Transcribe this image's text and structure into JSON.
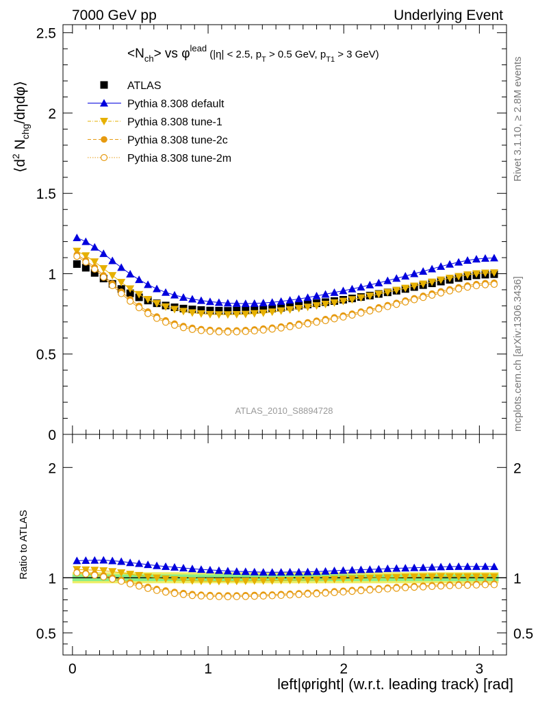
{
  "header": {
    "left": "7000 GeV pp",
    "right": "Underlying Event"
  },
  "side_labels": {
    "rivet": "Rivet 3.1.10, ≥ 2.8M events",
    "mcplots": "mcplots.cern.ch [arXiv:1306.3436]"
  },
  "chart_data": {
    "type": "scatter",
    "title": "<Nch> vs φlead (|η| < 2.5, pT > 0.5 GeV, pT1 > 3 GeV)",
    "analysis": "ATLAS_2010_S8894728",
    "xlabel": "left|φright| (w.r.t. leading track) [rad]",
    "ylabel": "⟨d² Nchg/dηdφ⟩",
    "ratio_ylabel": "Ratio to ATLAS",
    "xlim": [
      -0.07,
      3.2
    ],
    "ylim": [
      0,
      2.55
    ],
    "ratio_ylim": [
      0.3,
      2.3
    ],
    "x_ticks": [
      "0",
      "1",
      "2",
      "3"
    ],
    "y_ticks": [
      "0",
      "0.5",
      "1",
      "1.5",
      "2",
      "2.5"
    ],
    "ratio_ticks": [
      "0.5",
      "1",
      "2"
    ],
    "grid": false,
    "legend_position": "top-left",
    "colors": {
      "atlas": "#000000",
      "default": "#0000dd",
      "tune1": "#e6b000",
      "tune2c": "#e69a10",
      "tune2m": "#e69a10",
      "band_inner": "#88ee88",
      "band_outer": "#eeee66"
    },
    "x": [
      0.0327,
      0.0982,
      0.1636,
      0.2291,
      0.2945,
      0.36,
      0.4254,
      0.4909,
      0.5563,
      0.6218,
      0.6872,
      0.7527,
      0.8181,
      0.8836,
      0.949,
      1.0145,
      1.0799,
      1.1454,
      1.2108,
      1.2763,
      1.3417,
      1.4072,
      1.4726,
      1.5381,
      1.6035,
      1.669,
      1.7344,
      1.7999,
      1.8653,
      1.9308,
      1.9962,
      2.0617,
      2.1271,
      2.1926,
      2.258,
      2.3235,
      2.3889,
      2.4544,
      2.5198,
      2.5853,
      2.6507,
      2.7162,
      2.7816,
      2.8471,
      2.9125,
      2.978,
      3.0434,
      3.1089
    ],
    "series": [
      {
        "name": "ATLAS",
        "marker": "square",
        "values": [
          1.06,
          1.037,
          1.005,
          0.97,
          0.937,
          0.905,
          0.878,
          0.853,
          0.833,
          0.816,
          0.802,
          0.791,
          0.783,
          0.778,
          0.774,
          0.771,
          0.77,
          0.769,
          0.77,
          0.771,
          0.774,
          0.778,
          0.783,
          0.788,
          0.794,
          0.801,
          0.808,
          0.816,
          0.823,
          0.83,
          0.838,
          0.846,
          0.855,
          0.864,
          0.874,
          0.884,
          0.894,
          0.905,
          0.917,
          0.929,
          0.94,
          0.951,
          0.962,
          0.973,
          0.983,
          0.99,
          0.994,
          0.997
        ]
      },
      {
        "name": "Pythia 8.308 default",
        "marker": "triangle-up",
        "values": [
          1.224,
          1.2,
          1.165,
          1.125,
          1.081,
          1.039,
          0.998,
          0.963,
          0.932,
          0.906,
          0.884,
          0.867,
          0.853,
          0.842,
          0.833,
          0.826,
          0.821,
          0.817,
          0.815,
          0.814,
          0.815,
          0.818,
          0.822,
          0.828,
          0.835,
          0.843,
          0.852,
          0.862,
          0.872,
          0.883,
          0.894,
          0.905,
          0.917,
          0.93,
          0.943,
          0.957,
          0.971,
          0.985,
          1.0,
          1.015,
          1.03,
          1.045,
          1.059,
          1.072,
          1.083,
          1.091,
          1.096,
          1.098
        ]
      },
      {
        "name": "Pythia 8.308 tune-1",
        "marker": "triangle-down",
        "values": [
          1.14,
          1.112,
          1.074,
          1.032,
          0.989,
          0.946,
          0.906,
          0.871,
          0.84,
          0.815,
          0.794,
          0.778,
          0.766,
          0.757,
          0.751,
          0.747,
          0.745,
          0.745,
          0.746,
          0.748,
          0.752,
          0.756,
          0.762,
          0.769,
          0.776,
          0.784,
          0.792,
          0.801,
          0.81,
          0.819,
          0.829,
          0.839,
          0.85,
          0.861,
          0.873,
          0.885,
          0.897,
          0.91,
          0.923,
          0.936,
          0.948,
          0.961,
          0.972,
          0.983,
          0.993,
          1.0,
          1.004,
          1.006
        ]
      },
      {
        "name": "Pythia 8.308 tune-2c",
        "marker": "circle-filled",
        "values": [
          1.118,
          1.083,
          1.04,
          0.99,
          0.938,
          0.888,
          0.841,
          0.8,
          0.764,
          0.733,
          0.709,
          0.689,
          0.674,
          0.663,
          0.655,
          0.65,
          0.647,
          0.646,
          0.647,
          0.649,
          0.653,
          0.658,
          0.664,
          0.671,
          0.679,
          0.688,
          0.697,
          0.707,
          0.717,
          0.728,
          0.739,
          0.751,
          0.764,
          0.777,
          0.79,
          0.804,
          0.818,
          0.833,
          0.847,
          0.862,
          0.876,
          0.89,
          0.903,
          0.915,
          0.926,
          0.935,
          0.941,
          0.944
        ]
      },
      {
        "name": "Pythia 8.308 tune-2m",
        "marker": "circle-open",
        "values": [
          1.108,
          1.072,
          1.028,
          0.978,
          0.926,
          0.876,
          0.829,
          0.788,
          0.752,
          0.722,
          0.698,
          0.679,
          0.664,
          0.653,
          0.646,
          0.641,
          0.638,
          0.637,
          0.638,
          0.64,
          0.644,
          0.649,
          0.655,
          0.662,
          0.67,
          0.679,
          0.688,
          0.698,
          0.708,
          0.719,
          0.73,
          0.742,
          0.755,
          0.768,
          0.781,
          0.795,
          0.809,
          0.824,
          0.838,
          0.852,
          0.866,
          0.88,
          0.893,
          0.905,
          0.916,
          0.925,
          0.931,
          0.934
        ]
      }
    ],
    "ratio_series": [
      {
        "name": "Pythia 8.308 default",
        "values": [
          1.155,
          1.157,
          1.159,
          1.16,
          1.154,
          1.148,
          1.137,
          1.129,
          1.119,
          1.11,
          1.102,
          1.096,
          1.089,
          1.082,
          1.076,
          1.071,
          1.066,
          1.062,
          1.058,
          1.056,
          1.053,
          1.051,
          1.05,
          1.051,
          1.052,
          1.052,
          1.054,
          1.056,
          1.059,
          1.064,
          1.067,
          1.07,
          1.073,
          1.076,
          1.079,
          1.083,
          1.086,
          1.088,
          1.091,
          1.093,
          1.096,
          1.099,
          1.101,
          1.102,
          1.102,
          1.102,
          1.103,
          1.101
        ]
      },
      {
        "name": "Pythia 8.308 tune-1",
        "values": [
          1.075,
          1.072,
          1.069,
          1.064,
          1.056,
          1.045,
          1.032,
          1.021,
          1.008,
          0.999,
          0.99,
          0.984,
          0.978,
          0.973,
          0.97,
          0.969,
          0.968,
          0.969,
          0.969,
          0.97,
          0.972,
          0.972,
          0.973,
          0.976,
          0.977,
          0.979,
          0.98,
          0.982,
          0.984,
          0.987,
          0.989,
          0.992,
          0.994,
          0.997,
          0.999,
          1.001,
          1.003,
          1.006,
          1.007,
          1.008,
          1.009,
          1.011,
          1.01,
          1.01,
          1.01,
          1.01,
          1.01,
          1.009
        ]
      },
      {
        "name": "Pythia 8.308 tune-2c",
        "values": [
          1.055,
          1.044,
          1.035,
          1.021,
          1.001,
          0.981,
          0.958,
          0.938,
          0.917,
          0.898,
          0.884,
          0.871,
          0.861,
          0.852,
          0.846,
          0.843,
          0.84,
          0.84,
          0.84,
          0.842,
          0.844,
          0.846,
          0.848,
          0.852,
          0.855,
          0.859,
          0.863,
          0.866,
          0.871,
          0.877,
          0.882,
          0.888,
          0.894,
          0.899,
          0.904,
          0.91,
          0.915,
          0.92,
          0.924,
          0.928,
          0.932,
          0.936,
          0.939,
          0.94,
          0.942,
          0.944,
          0.947,
          0.947
        ]
      },
      {
        "name": "Pythia 8.308 tune-2m",
        "values": [
          1.045,
          1.034,
          1.023,
          1.008,
          0.988,
          0.968,
          0.944,
          0.924,
          0.903,
          0.885,
          0.87,
          0.858,
          0.848,
          0.839,
          0.835,
          0.831,
          0.829,
          0.828,
          0.829,
          0.83,
          0.832,
          0.834,
          0.837,
          0.84,
          0.844,
          0.848,
          0.852,
          0.855,
          0.861,
          0.866,
          0.871,
          0.877,
          0.883,
          0.889,
          0.894,
          0.899,
          0.905,
          0.91,
          0.914,
          0.917,
          0.921,
          0.925,
          0.928,
          0.93,
          0.932,
          0.934,
          0.937,
          0.937
        ]
      }
    ]
  }
}
